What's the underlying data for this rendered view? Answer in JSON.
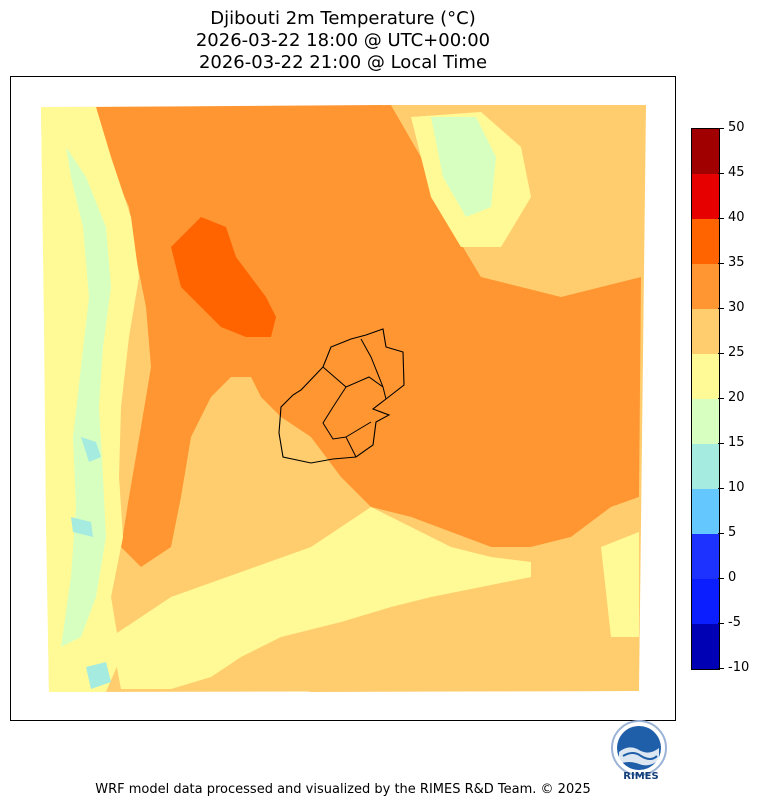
{
  "title": {
    "line1": "Djibouti 2m Temperature (°C)",
    "line2": "2026-03-22 18:00 @ UTC+00:00",
    "line3": "2026-03-22 21:00 @ Local Time"
  },
  "colorbar": {
    "levels": [
      {
        "min": -10,
        "max": -5,
        "color": "#0000b4"
      },
      {
        "min": -5,
        "max": 0,
        "color": "#0a1eff"
      },
      {
        "min": 0,
        "max": 5,
        "color": "#1e32ff"
      },
      {
        "min": 5,
        "max": 10,
        "color": "#64c8ff"
      },
      {
        "min": 10,
        "max": 15,
        "color": "#a5ebdf"
      },
      {
        "min": 15,
        "max": 20,
        "color": "#d7ffc0"
      },
      {
        "min": 20,
        "max": 25,
        "color": "#fffa96"
      },
      {
        "min": 25,
        "max": 30,
        "color": "#ffcd6e"
      },
      {
        "min": 30,
        "max": 35,
        "color": "#ff9632"
      },
      {
        "min": 35,
        "max": 40,
        "color": "#ff6400"
      },
      {
        "min": 40,
        "max": 45,
        "color": "#ff3200"
      },
      {
        "min": 45,
        "max": 50,
        "color": "#e60000"
      }
    ],
    "tick_labels": [
      "50",
      "45",
      "40",
      "35",
      "30",
      "25",
      "20",
      "15",
      "10",
      "5",
      "0",
      "-5",
      "-10"
    ],
    "top_color": "#a00000"
  },
  "map": {
    "field_colors": {
      "cool": "#a5ebdf",
      "mild": "#d7ffc0",
      "warm": "#fffa96",
      "warmer": "#ffcd6e",
      "hot": "#ff9632",
      "hotter": "#ff6400",
      "blue": "#64c8ff"
    },
    "border_color": "#000000"
  },
  "logo": {
    "text": "RIMES",
    "color": "#123e7a"
  },
  "footer": "WRF model data processed and visualized by the RIMES R&D Team. © 2025"
}
